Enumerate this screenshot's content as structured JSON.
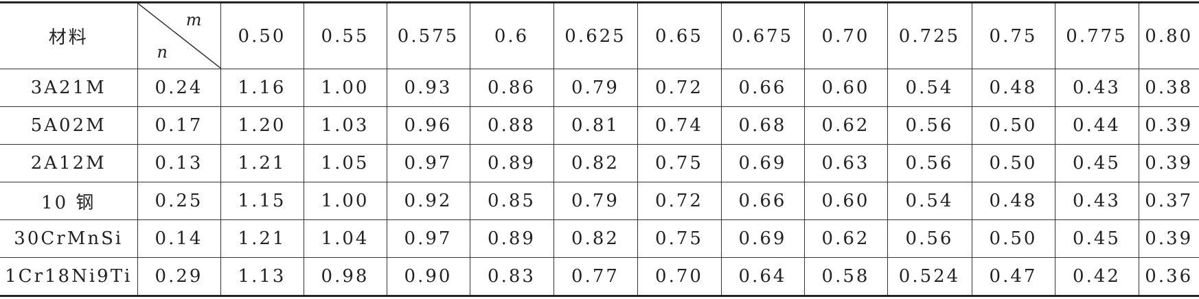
{
  "table": {
    "header": {
      "material": "材料",
      "m": "m",
      "n": "n",
      "columns": [
        "0.50",
        "0.55",
        "0.575",
        "0.6",
        "0.625",
        "0.65",
        "0.675",
        "0.70",
        "0.725",
        "0.75",
        "0.775",
        "0.80"
      ]
    },
    "rows": [
      {
        "material": "3A21M",
        "n": "0.24",
        "values": [
          "1.16",
          "1.00",
          "0.93",
          "0.86",
          "0.79",
          "0.72",
          "0.66",
          "0.60",
          "0.54",
          "0.48",
          "0.43",
          "0.38"
        ]
      },
      {
        "material": "5A02M",
        "n": "0.17",
        "values": [
          "1.20",
          "1.03",
          "0.96",
          "0.88",
          "0.81",
          "0.74",
          "0.68",
          "0.62",
          "0.56",
          "0.50",
          "0.44",
          "0.39"
        ]
      },
      {
        "material": "2A12M",
        "n": "0.13",
        "values": [
          "1.21",
          "1.05",
          "0.97",
          "0.89",
          "0.82",
          "0.75",
          "0.69",
          "0.63",
          "0.56",
          "0.50",
          "0.45",
          "0.39"
        ]
      },
      {
        "material": "10 钢",
        "n": "0.25",
        "values": [
          "1.15",
          "1.00",
          "0.92",
          "0.85",
          "0.79",
          "0.72",
          "0.66",
          "0.60",
          "0.54",
          "0.48",
          "0.43",
          "0.37"
        ]
      },
      {
        "material": "30CrMnSi",
        "n": "0.14",
        "values": [
          "1.21",
          "1.04",
          "0.97",
          "0.89",
          "0.82",
          "0.75",
          "0.69",
          "0.62",
          "0.56",
          "0.50",
          "0.45",
          "0.39"
        ]
      },
      {
        "material": "1Cr18Ni9Ti",
        "n": "0.29",
        "values": [
          "1.13",
          "0.98",
          "0.90",
          "0.83",
          "0.77",
          "0.70",
          "0.64",
          "0.58",
          "0.524",
          "0.47",
          "0.42",
          "0.36"
        ]
      }
    ]
  }
}
